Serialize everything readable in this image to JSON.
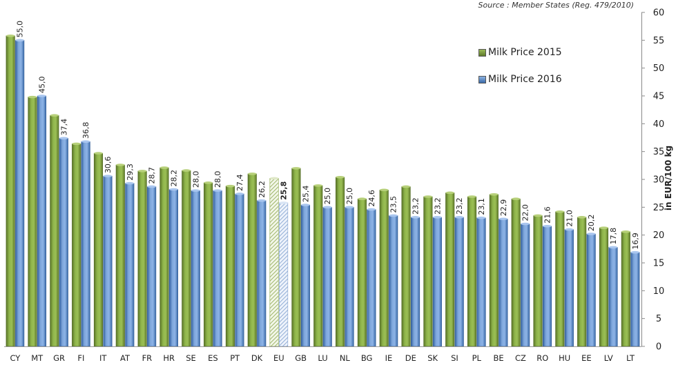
{
  "chart_data": {
    "type": "bar",
    "source": "Source : Member States (Reg. 479/2010)",
    "ylabel": "in EUR/100 kg",
    "xlabel": "",
    "ylim": [
      0,
      60
    ],
    "yticks": [
      0,
      5,
      10,
      15,
      20,
      25,
      30,
      35,
      40,
      45,
      50,
      55,
      60
    ],
    "axis_position": "right",
    "legend_position": "top-right",
    "grid": false,
    "categories": [
      "CY",
      "MT",
      "GR",
      "FI",
      "IT",
      "AT",
      "FR",
      "HR",
      "SE",
      "ES",
      "PT",
      "DK",
      "EU",
      "GB",
      "LU",
      "NL",
      "BG",
      "IE",
      "DE",
      "SK",
      "SI",
      "PL",
      "BE",
      "CZ",
      "RO",
      "HU",
      "EE",
      "LV",
      "LT"
    ],
    "series": [
      {
        "name": "Milk Price 2015",
        "color": "#77933c",
        "values": [
          55.8,
          44.8,
          41.5,
          36.4,
          34.7,
          32.6,
          31.5,
          32.1,
          31.6,
          29.4,
          28.8,
          31.0,
          30.2,
          32.0,
          28.9,
          30.4,
          26.5,
          28.1,
          28.7,
          26.9,
          27.6,
          26.9,
          27.3,
          26.5,
          23.5,
          24.2,
          23.2,
          21.3,
          20.6
        ]
      },
      {
        "name": "Milk Price 2016",
        "color": "#4f81bd",
        "values": [
          55.0,
          45.0,
          37.4,
          36.8,
          30.6,
          29.3,
          28.7,
          28.2,
          28.0,
          28.0,
          27.4,
          26.2,
          25.8,
          25.4,
          25.0,
          25.0,
          24.6,
          23.5,
          23.2,
          23.2,
          23.2,
          23.1,
          22.9,
          22.0,
          21.6,
          21.0,
          20.2,
          17.8,
          16.9
        ],
        "labels": [
          "55,0",
          "45,0",
          "37,4",
          "36,8",
          "30,6",
          "29,3",
          "28,7",
          "28,2",
          "28,0",
          "28,0",
          "27,4",
          "26,2",
          "25,8",
          "25,4",
          "25,0",
          "25,0",
          "24,6",
          "23,5",
          "23,2",
          "23,2",
          "23,2",
          "23,1",
          "22,9",
          "22,0",
          "21,6",
          "21,0",
          "20,2",
          "17,8",
          "16,9"
        ]
      }
    ],
    "highlight_category": "EU"
  }
}
